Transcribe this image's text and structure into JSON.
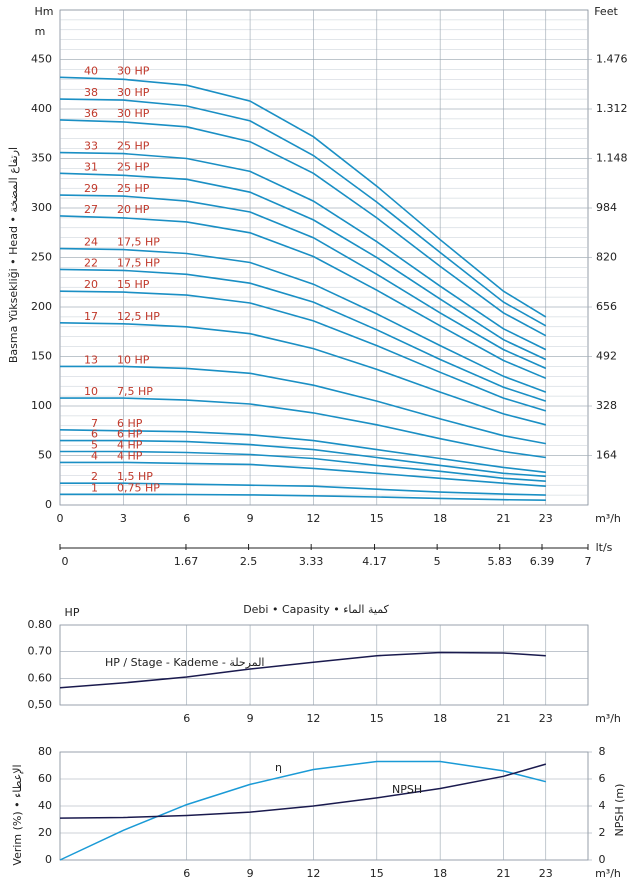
{
  "chart_data": [
    {
      "type": "line",
      "ylabel": "Basma Yüksekliği • Head • ارتفاع المضخة",
      "y_unit": [
        "Hm",
        "m"
      ],
      "y2_unit": "Feet",
      "xlabel": "m³/h",
      "x2label": "lt/s",
      "x": [
        0,
        3,
        6,
        9,
        12,
        15,
        18,
        21,
        23
      ],
      "xlim": [
        0,
        25
      ],
      "xticks": [
        0,
        3,
        6,
        9,
        12,
        15,
        18,
        21,
        23
      ],
      "ylim": [
        0,
        500
      ],
      "yticks": [
        0,
        50,
        100,
        150,
        200,
        250,
        300,
        350,
        400,
        450
      ],
      "y2lim": [
        0,
        1640
      ],
      "y2ticks": [
        164,
        328,
        492,
        656,
        820,
        984,
        {
          "value": 1148,
          "label": "1.148"
        },
        {
          "value": 1312,
          "label": "1.312"
        },
        {
          "value": 1476,
          "label": "1.476"
        }
      ],
      "x2lim": [
        0,
        7
      ],
      "x2ticks": [
        0,
        1.67,
        2.5,
        3.33,
        4.17,
        5,
        5.83,
        6.39,
        7
      ],
      "grid": true,
      "ygrid_step": 10,
      "label_color": "#c0392b",
      "series": [
        {
          "name": "40",
          "power": "30 HP",
          "color": "#1a8fc4",
          "values": [
            432,
            430,
            424,
            408,
            372,
            322,
            268,
            216,
            190
          ]
        },
        {
          "name": "38",
          "power": "30 HP",
          "color": "#1a8fc4",
          "values": [
            410,
            409,
            403,
            388,
            353,
            306,
            255,
            205,
            181
          ]
        },
        {
          "name": "36",
          "power": "30 HP",
          "color": "#1a8fc4",
          "values": [
            389,
            387,
            382,
            367,
            335,
            290,
            241,
            194,
            171
          ]
        },
        {
          "name": "33",
          "power": "25 HP",
          "color": "#1a8fc4",
          "values": [
            356,
            355,
            350,
            337,
            307,
            266,
            221,
            178,
            157
          ]
        },
        {
          "name": "31",
          "power": "25 HP",
          "color": "#1a8fc4",
          "values": [
            335,
            333,
            329,
            316,
            288,
            250,
            208,
            167,
            147
          ]
        },
        {
          "name": "29",
          "power": "25 HP",
          "color": "#1a8fc4",
          "values": [
            313,
            312,
            307,
            296,
            270,
            233,
            194,
            157,
            138
          ]
        },
        {
          "name": "27",
          "power": "20 HP",
          "color": "#1a8fc4",
          "values": [
            292,
            290,
            286,
            275,
            251,
            217,
            181,
            146,
            128
          ]
        },
        {
          "name": "24",
          "power": "17,5 HP",
          "color": "#1a8fc4",
          "values": [
            259,
            258,
            254,
            245,
            223,
            193,
            161,
            130,
            114
          ]
        },
        {
          "name": "22",
          "power": "17,5 HP",
          "color": "#1a8fc4",
          "values": [
            238,
            237,
            233,
            224,
            205,
            177,
            147,
            119,
            105
          ]
        },
        {
          "name": "20",
          "power": "15 HP",
          "color": "#1a8fc4",
          "values": [
            216,
            215,
            212,
            204,
            186,
            161,
            134,
            108,
            95
          ]
        },
        {
          "name": "17",
          "power": "12,5 HP",
          "color": "#1a8fc4",
          "values": [
            184,
            183,
            180,
            173,
            158,
            137,
            114,
            92,
            81
          ]
        },
        {
          "name": "13",
          "power": "10 HP",
          "color": "#1a8fc4",
          "values": [
            140,
            140,
            138,
            133,
            121,
            105,
            87,
            70,
            62
          ]
        },
        {
          "name": "10",
          "power": "7,5 HP",
          "color": "#1a8fc4",
          "values": [
            108,
            108,
            106,
            102,
            93,
            81,
            67,
            54,
            48
          ]
        },
        {
          "name": "7",
          "power": "6 HP",
          "color": "#1a8fc4",
          "values": [
            76,
            75,
            74,
            71,
            65,
            56,
            47,
            38,
            33
          ]
        },
        {
          "name": "6",
          "power": "6 HP",
          "color": "#1a8fc4",
          "values": [
            65,
            65,
            64,
            61,
            56,
            48,
            40,
            32,
            29
          ]
        },
        {
          "name": "5",
          "power": "4 HP",
          "color": "#1a8fc4",
          "values": [
            54,
            54,
            53,
            51,
            47,
            40,
            34,
            27,
            24
          ]
        },
        {
          "name": "4",
          "power": "4 HP",
          "color": "#1a8fc4",
          "values": [
            43,
            43,
            42,
            41,
            37,
            32,
            27,
            22,
            19
          ]
        },
        {
          "name": "2",
          "power": "1,5 HP",
          "color": "#1a8fc4",
          "values": [
            22,
            22,
            21,
            20,
            19,
            16,
            13,
            11,
            10
          ]
        },
        {
          "name": "1",
          "power": "0,75 HP",
          "color": "#1a8fc4",
          "values": [
            10.8,
            10.8,
            10.6,
            10.2,
            9.3,
            8.1,
            6.7,
            5.4,
            4.8
          ]
        }
      ]
    },
    {
      "type": "line",
      "title": "Debi • Capasity • كمية الماء",
      "ylabel": "HP",
      "xlabel": "m³/h",
      "x": [
        0,
        3,
        6,
        9,
        12,
        15,
        18,
        21,
        23
      ],
      "xlim": [
        0,
        25
      ],
      "xticks": [
        6,
        9,
        12,
        15,
        18,
        21,
        23
      ],
      "ylim": [
        0.5,
        0.8
      ],
      "yticks": [
        {
          "value": 0.8,
          "label": "0.80"
        },
        {
          "value": 0.7,
          "label": "0.70"
        },
        {
          "value": 0.6,
          "label": "0.60"
        },
        {
          "value": 0.5,
          "label": "0,50"
        }
      ],
      "grid": true,
      "series": [
        {
          "name": "HP / Stage - Kademe - المرحلة",
          "color": "#1a1a4e",
          "values": [
            0.565,
            0.583,
            0.605,
            0.635,
            0.66,
            0.685,
            0.697,
            0.695,
            0.685
          ]
        }
      ]
    },
    {
      "type": "line",
      "ylabel": "Verim (%) • الإعطاء",
      "y2label": "NPSH (m)",
      "xlabel": "m³/h",
      "x": [
        0,
        3,
        6,
        9,
        12,
        15,
        18,
        21,
        23
      ],
      "xlim": [
        0,
        25
      ],
      "xticks": [
        6,
        9,
        12,
        15,
        18,
        21,
        23
      ],
      "ylim": [
        0,
        80
      ],
      "yticks": [
        0,
        20,
        40,
        60,
        80
      ],
      "y2lim": [
        0,
        8
      ],
      "y2ticks": [
        0,
        2,
        4,
        6,
        8
      ],
      "grid": true,
      "series": [
        {
          "name": "η",
          "color": "#1a9ad6",
          "values": [
            0,
            22,
            41,
            56,
            67,
            73,
            73,
            66,
            58
          ]
        },
        {
          "name": "NPSH",
          "color": "#1a1a4e",
          "axis": "y2",
          "values": [
            3.1,
            3.15,
            3.3,
            3.55,
            4.0,
            4.6,
            5.3,
            6.2,
            7.1
          ]
        }
      ]
    }
  ]
}
